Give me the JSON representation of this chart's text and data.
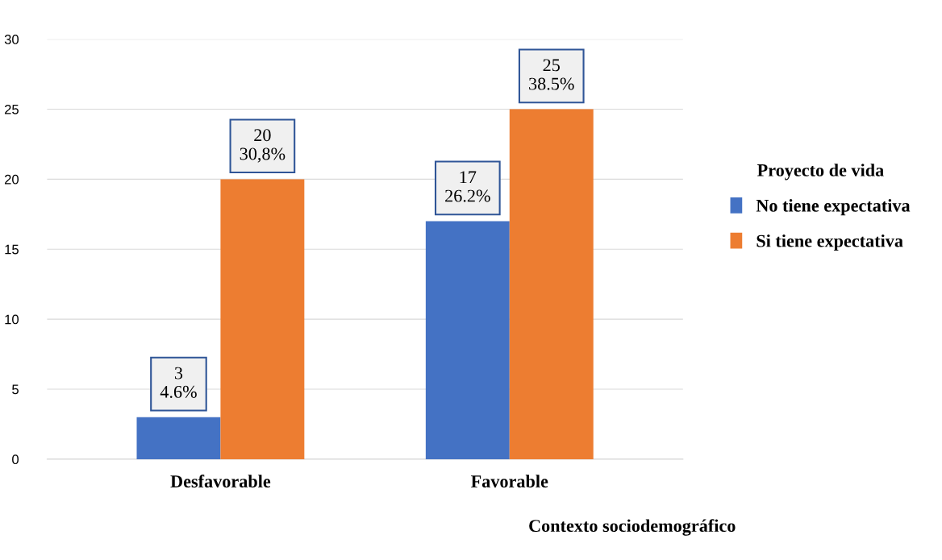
{
  "chart_data": {
    "type": "bar",
    "xlabel": "Contexto sociodemográfico",
    "legend_title": "Proyecto de vida",
    "categories": [
      "Desfavorable",
      "Favorable"
    ],
    "series": [
      {
        "name": "No tiene expectativa",
        "color": "#4472c4",
        "values": [
          3,
          17
        ],
        "value_labels": [
          "3\n4.6%",
          "17\n26.2%"
        ]
      },
      {
        "name": "Si tiene expectativa",
        "color": "#ed7d31",
        "values": [
          20,
          25
        ],
        "value_labels": [
          "20\n30,8%",
          "25\n38.5%"
        ]
      }
    ],
    "ylim": [
      0,
      30
    ],
    "yticks": [
      0,
      5,
      10,
      15,
      20,
      25,
      30
    ],
    "grid": "y",
    "legend": "right"
  }
}
